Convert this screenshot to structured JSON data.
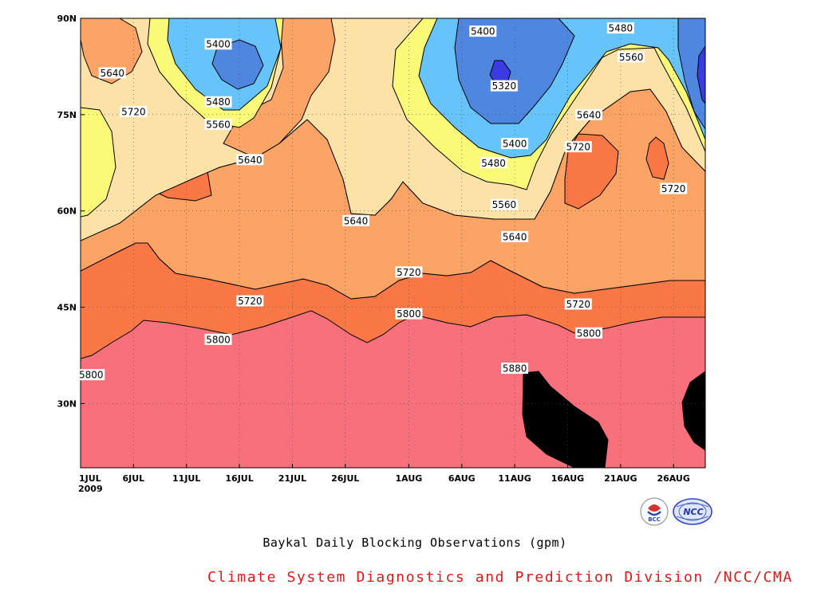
{
  "chart_data": {
    "type": "heatmap",
    "subtype": "filled-contour (time-latitude Hovmoller)",
    "x_axis": {
      "ticks": [
        "1JUL",
        "6JUL",
        "11JUL",
        "16JUL",
        "21JUL",
        "26JUL",
        "1AUG",
        "6AUG",
        "11AUG",
        "16AUG",
        "21AUG",
        "26AUG"
      ],
      "year_label": "2009",
      "range": [
        "1JUL",
        "29AUG"
      ]
    },
    "y_axis": {
      "ticks": [
        "30N",
        "45N",
        "60N",
        "75N",
        "90N"
      ],
      "range": [
        20,
        90
      ]
    },
    "grid": "dotted",
    "contour_levels_gpm": [
      5320,
      5400,
      5480,
      5560,
      5640,
      5720,
      5800,
      5880
    ],
    "fill_colors": {
      "le5320": "#3a3ce0",
      "5320_5400": "#4f86e0",
      "5400_5480": "#66c4fa",
      "5480_5560": "#fafa78",
      "5560_5640": "#fde2a8",
      "5640_5720": "#fca366",
      "5720_5800": "#fa7746",
      "5800_5880": "#f7707c",
      "ge5880": "#ee3e50"
    },
    "contour_labels": [
      {
        "text": "5400",
        "date": "14JUL",
        "lat": 86
      },
      {
        "text": "5640",
        "date": "4JUL",
        "lat": 81.5
      },
      {
        "text": "5400",
        "date": "8AUG",
        "lat": 88
      },
      {
        "text": "5480",
        "date": "21AUG",
        "lat": 88.5
      },
      {
        "text": "5560",
        "date": "22AUG",
        "lat": 84
      },
      {
        "text": "5320",
        "date": "10AUG",
        "lat": 79.5
      },
      {
        "text": "5720",
        "date": "6JUL",
        "lat": 75.5
      },
      {
        "text": "5480",
        "date": "14JUL",
        "lat": 77
      },
      {
        "text": "5560",
        "date": "14JUL",
        "lat": 73.5
      },
      {
        "text": "5640",
        "date": "18AUG",
        "lat": 75
      },
      {
        "text": "5400",
        "date": "11AUG",
        "lat": 70.5
      },
      {
        "text": "5720",
        "date": "17AUG",
        "lat": 70
      },
      {
        "text": "5640",
        "date": "17JUL",
        "lat": 68
      },
      {
        "text": "5480",
        "date": "9AUG",
        "lat": 67.5
      },
      {
        "text": "5720",
        "date": "26AUG",
        "lat": 63.5
      },
      {
        "text": "5560",
        "date": "10AUG",
        "lat": 61
      },
      {
        "text": "5640",
        "date": "27JUL",
        "lat": 58.5
      },
      {
        "text": "5640",
        "date": "11AUG",
        "lat": 56
      },
      {
        "text": "5720",
        "date": "1AUG",
        "lat": 50.5
      },
      {
        "text": "5720",
        "date": "17JUL",
        "lat": 46
      },
      {
        "text": "5720",
        "date": "17AUG",
        "lat": 45.5
      },
      {
        "text": "5800",
        "date": "1AUG",
        "lat": 44
      },
      {
        "text": "5800",
        "date": "14JUL",
        "lat": 40
      },
      {
        "text": "5800",
        "date": "18AUG",
        "lat": 41
      },
      {
        "text": "5880",
        "date": "11AUG",
        "lat": 35.5
      },
      {
        "text": "5800",
        "date": "2JUL",
        "lat": 34.5
      }
    ]
  },
  "captions": {
    "title": "Baykal Daily Blocking Observations (gpm)",
    "credit": "Climate System Diagnostics and Prediction Division /NCC/CMA"
  },
  "logos": {
    "left_text": "BCC",
    "right_text": "NCC"
  }
}
